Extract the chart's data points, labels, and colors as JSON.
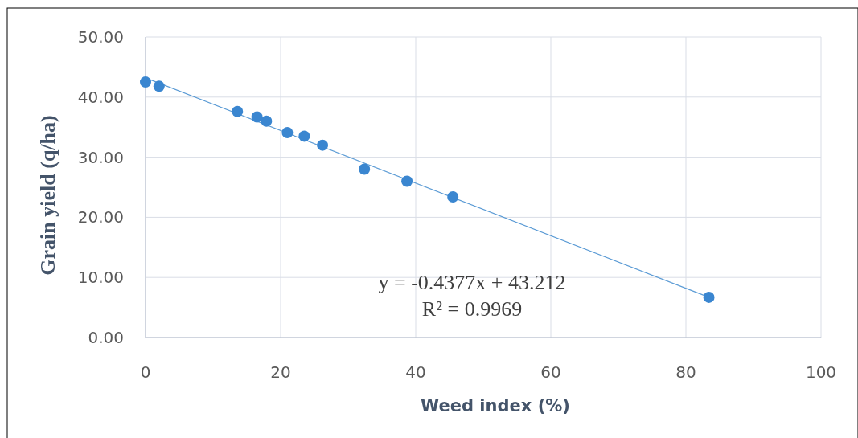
{
  "chart_data": {
    "type": "scatter",
    "xlabel": "Weed index (%)",
    "ylabel": "Grain yield (q/ha)",
    "xlim": [
      0,
      100
    ],
    "xticks": [
      0,
      20,
      40,
      60,
      80,
      100
    ],
    "ylim": [
      0,
      50
    ],
    "yticks": [
      {
        "value": 0,
        "label": "0.00"
      },
      {
        "value": 10,
        "label": "10.00"
      },
      {
        "value": 20,
        "label": "20.00"
      },
      {
        "value": 30,
        "label": "30.00"
      },
      {
        "value": 40,
        "label": "40.00"
      },
      {
        "value": 50,
        "label": "50.00"
      }
    ],
    "grid": true,
    "series": [
      {
        "marker": "circle",
        "color": "#3a86d0",
        "x": [
          0,
          2.0,
          13.6,
          16.5,
          17.9,
          21.0,
          23.5,
          26.2,
          32.4,
          38.7,
          45.5,
          83.4
        ],
        "values": [
          42.5,
          41.8,
          37.6,
          36.7,
          36.0,
          34.1,
          33.5,
          32.0,
          28.0,
          26.0,
          23.4,
          6.7
        ]
      },
      {
        "type": "line",
        "color": "#5b9bd5",
        "x": [
          0,
          83.4
        ],
        "values": [
          43.2,
          6.7
        ]
      }
    ],
    "annotations": [
      "y = -0.4377x + 43.212",
      "R² = 0.9969"
    ]
  }
}
